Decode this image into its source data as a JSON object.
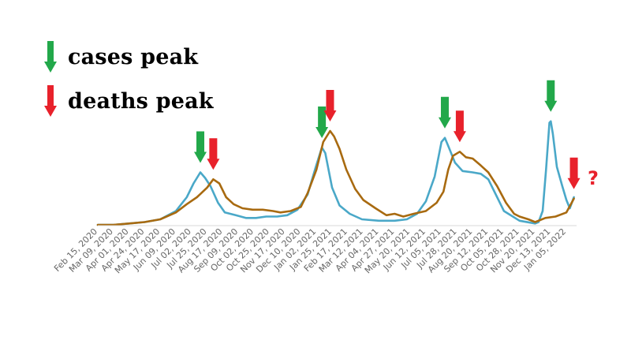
{
  "legend": [
    {
      "label": "cases peak",
      "color": "#22a84a"
    },
    {
      "label": "deaths peak",
      "color": "#e8212b"
    }
  ],
  "annotation": {
    "text": "?",
    "color": "#e8212b"
  },
  "chart_data": {
    "type": "line",
    "title": "",
    "xlabel": "",
    "ylabel": "",
    "x_axis": "date",
    "x_range": [
      "2020-02-15",
      "2022-01-20"
    ],
    "y_range": [
      0,
      1
    ],
    "y_units": "relative (axis unlabeled)",
    "grid": false,
    "x_ticks": [
      "Feb 15, 2020",
      "Mar 09, 2020",
      "Apr 01, 2020",
      "Apr 24, 2020",
      "May 17, 2020",
      "Jun 09, 2020",
      "Jul 02, 2020",
      "Jul 25, 2020",
      "Aug 17, 2020",
      "Sep 09, 2020",
      "Oct 02, 2020",
      "Oct 25, 2020",
      "Nov 17, 2020",
      "Dec 10, 2020",
      "Jan 02, 2021",
      "Jan 25, 2021",
      "Feb 17, 2021",
      "Mar 12, 2021",
      "Apr 04, 2021",
      "Apr 27, 2021",
      "May 20, 2021",
      "Jun 12, 2021",
      "Jul 05, 2021",
      "Jul 28, 2021",
      "Aug 20, 2021",
      "Sep 12, 2021",
      "Oct 05, 2021",
      "Oct 28, 2021",
      "Nov 20, 2021",
      "Dec 13, 2021",
      "Jan 05, 2022"
    ],
    "series": [
      {
        "color": "#4aa8c8",
        "role": "cases",
        "points": [
          [
            "2020-02-15",
            0.0
          ],
          [
            "2020-03-09",
            0.0
          ],
          [
            "2020-04-01",
            0.01
          ],
          [
            "2020-04-24",
            0.02
          ],
          [
            "2020-05-17",
            0.04
          ],
          [
            "2020-06-09",
            0.1
          ],
          [
            "2020-06-25",
            0.2
          ],
          [
            "2020-07-05",
            0.3
          ],
          [
            "2020-07-15",
            0.38
          ],
          [
            "2020-07-22",
            0.34
          ],
          [
            "2020-07-30",
            0.28
          ],
          [
            "2020-08-10",
            0.16
          ],
          [
            "2020-08-20",
            0.09
          ],
          [
            "2020-09-05",
            0.07
          ],
          [
            "2020-09-20",
            0.05
          ],
          [
            "2020-10-05",
            0.05
          ],
          [
            "2020-10-20",
            0.06
          ],
          [
            "2020-11-05",
            0.06
          ],
          [
            "2020-11-20",
            0.07
          ],
          [
            "2020-12-05",
            0.11
          ],
          [
            "2020-12-20",
            0.22
          ],
          [
            "2021-01-01",
            0.42
          ],
          [
            "2021-01-10",
            0.56
          ],
          [
            "2021-01-15",
            0.52
          ],
          [
            "2021-01-25",
            0.27
          ],
          [
            "2021-02-05",
            0.14
          ],
          [
            "2021-02-20",
            0.08
          ],
          [
            "2021-03-10",
            0.04
          ],
          [
            "2021-04-04",
            0.03
          ],
          [
            "2021-04-27",
            0.03
          ],
          [
            "2021-05-15",
            0.04
          ],
          [
            "2021-05-30",
            0.08
          ],
          [
            "2021-06-12",
            0.17
          ],
          [
            "2021-06-25",
            0.35
          ],
          [
            "2021-07-05",
            0.6
          ],
          [
            "2021-07-10",
            0.63
          ],
          [
            "2021-07-16",
            0.56
          ],
          [
            "2021-07-25",
            0.45
          ],
          [
            "2021-08-05",
            0.39
          ],
          [
            "2021-08-20",
            0.38
          ],
          [
            "2021-09-01",
            0.37
          ],
          [
            "2021-09-12",
            0.33
          ],
          [
            "2021-09-25",
            0.2
          ],
          [
            "2021-10-05",
            0.1
          ],
          [
            "2021-10-28",
            0.03
          ],
          [
            "2021-11-20",
            0.01
          ],
          [
            "2021-11-25",
            0.02
          ],
          [
            "2021-12-01",
            0.1
          ],
          [
            "2021-12-06",
            0.4
          ],
          [
            "2021-12-11",
            0.74
          ],
          [
            "2021-12-13",
            0.75
          ],
          [
            "2021-12-16",
            0.66
          ],
          [
            "2021-12-22",
            0.42
          ],
          [
            "2021-12-30",
            0.28
          ],
          [
            "2022-01-05",
            0.18
          ],
          [
            "2022-01-10",
            0.12
          ],
          [
            "2022-01-16",
            0.2
          ]
        ]
      },
      {
        "color": "#a86a10",
        "role": "deaths",
        "points": [
          [
            "2020-02-15",
            0.0
          ],
          [
            "2020-03-09",
            0.0
          ],
          [
            "2020-04-01",
            0.01
          ],
          [
            "2020-04-24",
            0.02
          ],
          [
            "2020-05-17",
            0.04
          ],
          [
            "2020-06-09",
            0.09
          ],
          [
            "2020-06-25",
            0.15
          ],
          [
            "2020-07-10",
            0.2
          ],
          [
            "2020-07-25",
            0.27
          ],
          [
            "2020-08-03",
            0.33
          ],
          [
            "2020-08-12",
            0.3
          ],
          [
            "2020-08-22",
            0.2
          ],
          [
            "2020-09-02",
            0.15
          ],
          [
            "2020-09-15",
            0.12
          ],
          [
            "2020-09-30",
            0.11
          ],
          [
            "2020-10-15",
            0.11
          ],
          [
            "2020-10-30",
            0.1
          ],
          [
            "2020-11-10",
            0.09
          ],
          [
            "2020-11-25",
            0.1
          ],
          [
            "2020-12-10",
            0.13
          ],
          [
            "2020-12-20",
            0.23
          ],
          [
            "2021-01-02",
            0.4
          ],
          [
            "2021-01-12",
            0.6
          ],
          [
            "2021-01-22",
            0.68
          ],
          [
            "2021-01-28",
            0.64
          ],
          [
            "2021-02-05",
            0.55
          ],
          [
            "2021-02-15",
            0.4
          ],
          [
            "2021-02-28",
            0.26
          ],
          [
            "2021-03-12",
            0.18
          ],
          [
            "2021-03-30",
            0.12
          ],
          [
            "2021-04-15",
            0.07
          ],
          [
            "2021-04-27",
            0.08
          ],
          [
            "2021-05-10",
            0.06
          ],
          [
            "2021-05-25",
            0.08
          ],
          [
            "2021-06-12",
            0.1
          ],
          [
            "2021-06-28",
            0.16
          ],
          [
            "2021-07-08",
            0.24
          ],
          [
            "2021-07-15",
            0.4
          ],
          [
            "2021-07-22",
            0.5
          ],
          [
            "2021-08-01",
            0.53
          ],
          [
            "2021-08-10",
            0.49
          ],
          [
            "2021-08-20",
            0.48
          ],
          [
            "2021-09-01",
            0.43
          ],
          [
            "2021-09-12",
            0.38
          ],
          [
            "2021-09-25",
            0.28
          ],
          [
            "2021-10-08",
            0.16
          ],
          [
            "2021-10-20",
            0.08
          ],
          [
            "2021-10-28",
            0.06
          ],
          [
            "2021-11-10",
            0.04
          ],
          [
            "2021-11-20",
            0.02
          ],
          [
            "2021-12-05",
            0.05
          ],
          [
            "2021-12-20",
            0.06
          ],
          [
            "2022-01-05",
            0.09
          ],
          [
            "2022-01-16",
            0.19
          ]
        ]
      }
    ],
    "peak_markers": [
      {
        "type": "cases",
        "date": "2020-07-15"
      },
      {
        "type": "deaths",
        "date": "2020-08-03"
      },
      {
        "type": "cases",
        "date": "2021-01-10"
      },
      {
        "type": "deaths",
        "date": "2021-01-22"
      },
      {
        "type": "cases",
        "date": "2021-07-10"
      },
      {
        "type": "deaths",
        "date": "2021-08-01"
      },
      {
        "type": "cases",
        "date": "2021-12-13"
      },
      {
        "type": "deaths",
        "date": "2022-01-16"
      }
    ]
  }
}
